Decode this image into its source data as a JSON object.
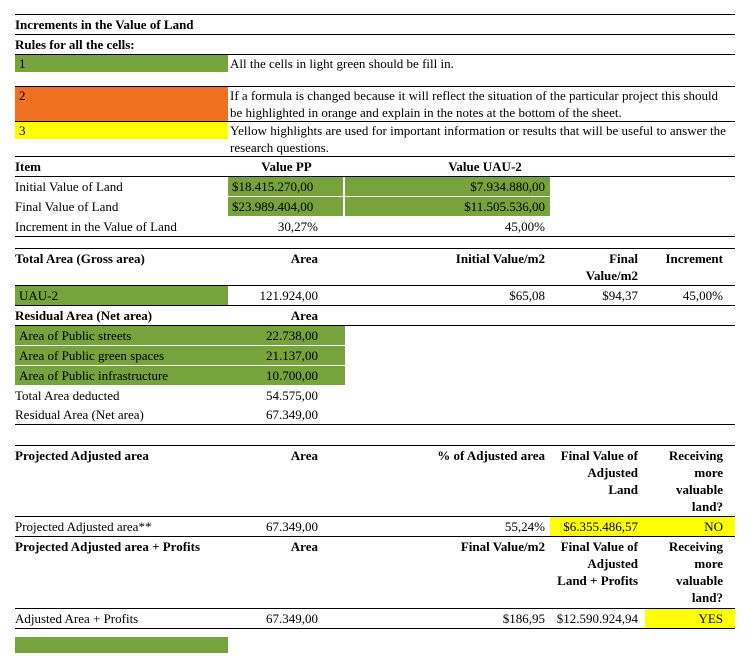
{
  "colors": {
    "green": "#76a33c",
    "orange": "#ef7020",
    "yellow": "#ffff00"
  },
  "title": "Increments in the Value of Land",
  "rules": {
    "heading": "Rules for all the cells:",
    "items": [
      {
        "num": "1",
        "highlight": "green",
        "text": "All the cells in light green should be fill in."
      },
      {
        "num": "2",
        "highlight": "orange",
        "text": "If a formula is changed because it will reflect the situation of the particular project this should be highlighted in orange and explain in the notes at the bottom of the sheet."
      },
      {
        "num": "3",
        "highlight": "yellow",
        "text": "Yellow highlights are used for important information or results that will be useful to answer the research questions."
      }
    ]
  },
  "value_table": {
    "headers": {
      "item": "Item",
      "value_pp": "Value PP",
      "value_uau2": "Value UAU-2"
    },
    "rows": [
      {
        "item": "Initial Value of Land",
        "value_pp": "$18.415.270,00",
        "value_uau2": "$7.934.880,00"
      },
      {
        "item": "Final Value of Land",
        "value_pp": "$23.989.404,00",
        "value_uau2": "$11.505.536,00"
      },
      {
        "item": "Increment in the Value of Land",
        "value_pp": "30,27%",
        "value_uau2": "45,00%"
      }
    ]
  },
  "area_table": {
    "headers": {
      "label": "Total Area (Gross area)",
      "area": "Area",
      "initial_value_m2": "Initial Value/m2",
      "final_value_m2": "Final Value/m2",
      "increment": "Increment"
    },
    "uau2_row": {
      "label": "UAU-2",
      "area": "121.924,00",
      "initial_value_m2": "$65,08",
      "final_value_m2": "$94,37",
      "increment": "45,00%"
    },
    "residual_headers": {
      "label": "Residual Area (Net area)",
      "area": "Area"
    },
    "deduction_rows": [
      {
        "label": "Area of Public streets",
        "area": "22.738,00"
      },
      {
        "label": "Area of Public green spaces",
        "area": "21.137,00"
      },
      {
        "label": "Area of Public infrastructure",
        "area": "10.700,00"
      }
    ],
    "total_deducted_row": {
      "label": "Total Area deducted",
      "area": "54.575,00"
    },
    "residual_row": {
      "label": "Residual Area (Net area)",
      "area": "67.349,00"
    }
  },
  "projected_table": {
    "headers": {
      "label": "Projected Adjusted area",
      "area": "Area",
      "pct": "% of Adjusted area",
      "final_value": "Final Value of Adjusted Land",
      "receiving": "Receiving more valuable land?"
    },
    "row": {
      "label": "Projected Adjusted area**",
      "area": "67.349,00",
      "pct": "55,24%",
      "final_value": "$6.355.486,57",
      "receiving": "NO"
    },
    "profit_headers": {
      "label": "Projected Adjusted area + Profits",
      "area": "Area",
      "value_m2": "Final Value/m2",
      "final_value": "Final Value of Adjusted Land + Profits",
      "receiving": "Receiving more valuable land?"
    },
    "profit_row": {
      "label": "Adjusted Area + Profits",
      "area": "67.349,00",
      "value_m2": "$186,95",
      "final_value": "$12.590.924,94",
      "receiving": "YES"
    }
  }
}
